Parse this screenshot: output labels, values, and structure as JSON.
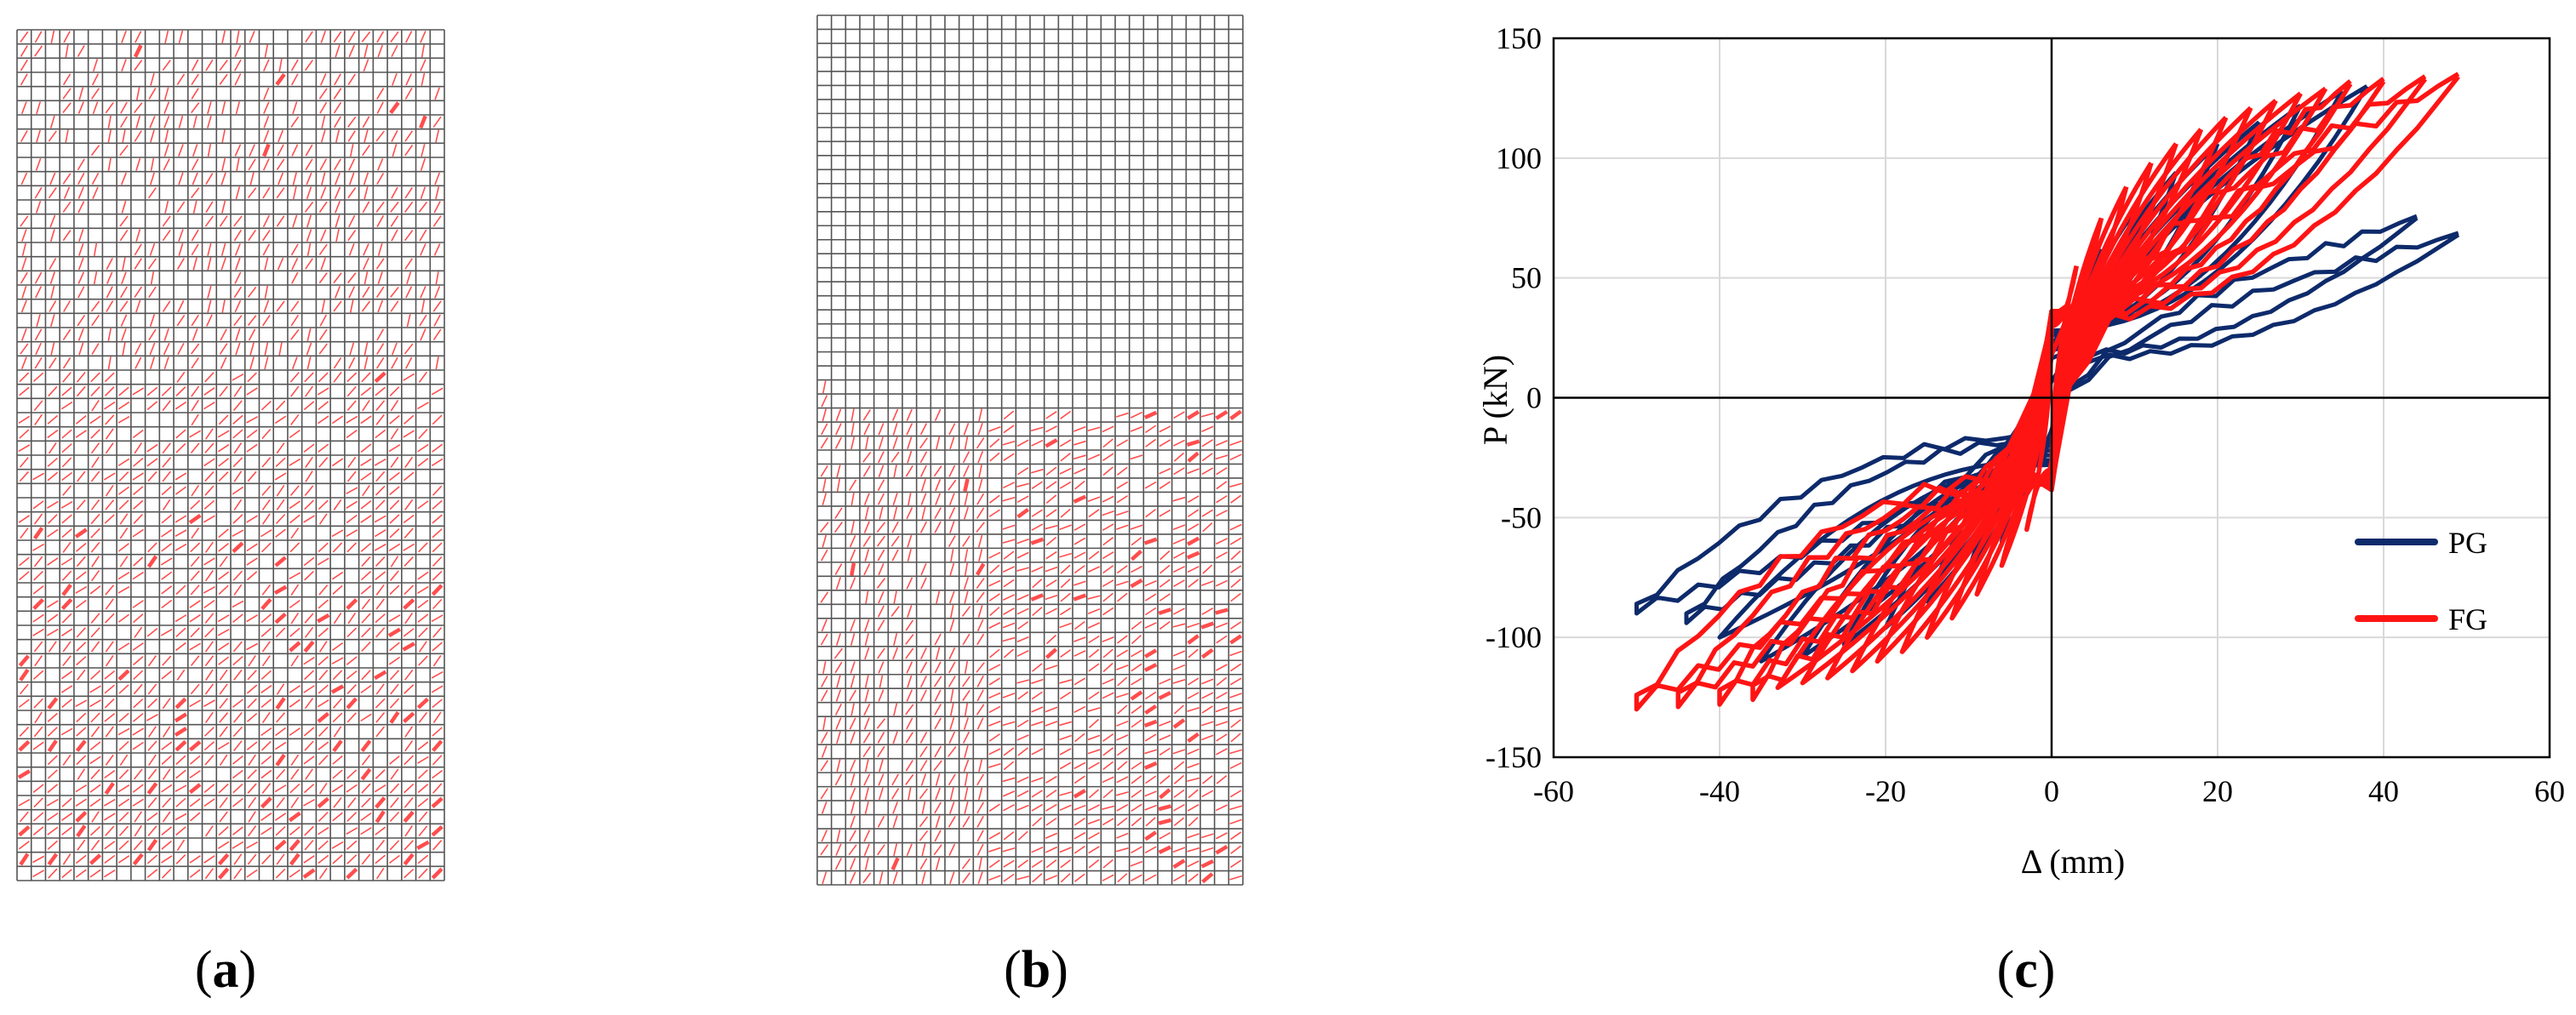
{
  "panels": {
    "a": {
      "letter": "a"
    },
    "b": {
      "letter": "b"
    },
    "c": {
      "letter": "c"
    }
  },
  "colors": {
    "grid_line": "#555555",
    "crack": "#ff4d4d",
    "PG": "#0d2a6b",
    "FG": "#ff1414"
  },
  "chart_data": {
    "type": "line",
    "xlabel": "Δ (mm)",
    "ylabel": "P (kN)",
    "xlim": [
      -60,
      60
    ],
    "ylim": [
      -150,
      150
    ],
    "xticks": [
      -60,
      -40,
      -20,
      0,
      20,
      40,
      60
    ],
    "yticks": [
      -150,
      -100,
      -50,
      0,
      50,
      100,
      150
    ],
    "grid": true,
    "legend_position": "right",
    "series": [
      {
        "name": "PG",
        "color": "#0d2a6b",
        "cycles": [
          {
            "amp_pos": 6,
            "amp_neg": -6,
            "peak_pos": 62,
            "peak_neg": -60,
            "int_pos": 20,
            "int_neg": -20
          },
          {
            "amp_pos": 10,
            "amp_neg": -10,
            "peak_pos": 78,
            "peak_neg": -72,
            "int_pos": 22,
            "int_neg": -22
          },
          {
            "amp_pos": 15,
            "amp_neg": -15,
            "peak_pos": 94,
            "peak_neg": -85,
            "int_pos": 24,
            "int_neg": -24
          },
          {
            "amp_pos": 20,
            "amp_neg": -20,
            "peak_pos": 106,
            "peak_neg": -96,
            "int_pos": 26,
            "int_neg": -26
          },
          {
            "amp_pos": 25,
            "amp_neg": -25,
            "peak_pos": 115,
            "peak_neg": -103,
            "int_pos": 27,
            "int_neg": -27
          },
          {
            "amp_pos": 30,
            "amp_neg": -30,
            "peak_pos": 122,
            "peak_neg": -108,
            "int_pos": 28,
            "int_neg": -28
          },
          {
            "amp_pos": 35,
            "amp_neg": -35,
            "peak_pos": 128,
            "peak_neg": -110,
            "int_pos": 28,
            "int_neg": -28
          },
          {
            "amp_pos": 38,
            "amp_neg": -40,
            "peak_pos": 130,
            "peak_neg": -100,
            "int_pos": 28,
            "int_neg": -26
          },
          {
            "amp_pos": 44,
            "amp_neg": -44,
            "peak_pos": 75,
            "peak_neg": -92,
            "int_pos": 18,
            "int_neg": -18
          },
          {
            "amp_pos": 49,
            "amp_neg": -50,
            "peak_pos": 68,
            "peak_neg": -88,
            "int_pos": 16,
            "int_neg": -16
          }
        ]
      },
      {
        "name": "FG",
        "color": "#ff1414",
        "cycles": [
          {
            "amp_pos": 3,
            "amp_neg": -3,
            "peak_pos": 55,
            "peak_neg": -55,
            "int_pos": 30,
            "int_neg": -30
          },
          {
            "amp_pos": 6,
            "amp_neg": -6,
            "peak_pos": 75,
            "peak_neg": -70,
            "int_pos": 32,
            "int_neg": -32
          },
          {
            "amp_pos": 9,
            "amp_neg": -9,
            "peak_pos": 88,
            "peak_neg": -82,
            "int_pos": 33,
            "int_neg": -33
          },
          {
            "amp_pos": 12,
            "amp_neg": -12,
            "peak_pos": 98,
            "peak_neg": -92,
            "int_pos": 34,
            "int_neg": -34
          },
          {
            "amp_pos": 15,
            "amp_neg": -15,
            "peak_pos": 106,
            "peak_neg": -100,
            "int_pos": 35,
            "int_neg": -35
          },
          {
            "amp_pos": 18,
            "amp_neg": -18,
            "peak_pos": 112,
            "peak_neg": -106,
            "int_pos": 35,
            "int_neg": -35
          },
          {
            "amp_pos": 21,
            "amp_neg": -21,
            "peak_pos": 117,
            "peak_neg": -110,
            "int_pos": 36,
            "int_neg": -36
          },
          {
            "amp_pos": 24,
            "amp_neg": -24,
            "peak_pos": 121,
            "peak_neg": -114,
            "int_pos": 36,
            "int_neg": -36
          },
          {
            "amp_pos": 27,
            "amp_neg": -27,
            "peak_pos": 124,
            "peak_neg": -117,
            "int_pos": 36,
            "int_neg": -36
          },
          {
            "amp_pos": 30,
            "amp_neg": -30,
            "peak_pos": 127,
            "peak_neg": -119,
            "int_pos": 36,
            "int_neg": -36
          },
          {
            "amp_pos": 33,
            "amp_neg": -33,
            "peak_pos": 129,
            "peak_neg": -121,
            "int_pos": 36,
            "int_neg": -36
          },
          {
            "amp_pos": 36,
            "amp_neg": -36,
            "peak_pos": 131,
            "peak_neg": -123,
            "int_pos": 36,
            "int_neg": -36
          },
          {
            "amp_pos": 40,
            "amp_neg": -40,
            "peak_pos": 132,
            "peak_neg": -125,
            "int_pos": 35,
            "int_neg": -35
          },
          {
            "amp_pos": 45,
            "amp_neg": -45,
            "peak_pos": 133,
            "peak_neg": -126,
            "int_pos": 34,
            "int_neg": -34
          },
          {
            "amp_pos": 49,
            "amp_neg": -50,
            "peak_pos": 134,
            "peak_neg": -127,
            "int_pos": 32,
            "int_neg": -32
          }
        ]
      }
    ]
  }
}
